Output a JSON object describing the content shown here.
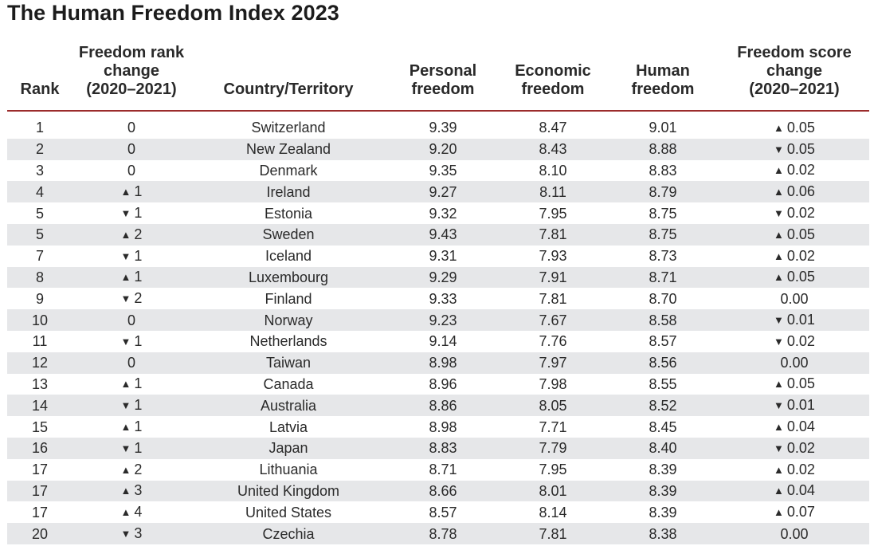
{
  "title": "The Human Freedom Index 2023",
  "header": {
    "rank": "Rank",
    "rank_change_l1": "Freedom rank",
    "rank_change_l2": "change",
    "rank_change_l3": "(2020–2021)",
    "country": "Country/Territory",
    "personal_l1": "Personal",
    "personal_l2": "freedom",
    "economic_l1": "Economic",
    "economic_l2": "freedom",
    "human_l1": "Human",
    "human_l2": "freedom",
    "score_change_l1": "Freedom score",
    "score_change_l2": "change",
    "score_change_l3": "(2020–2021)"
  },
  "arrows": {
    "up": "▲",
    "down": "▼"
  },
  "rows": [
    {
      "rank": "1",
      "rank_change": "0",
      "rank_dir": "",
      "country": "Switzerland",
      "personal": "9.39",
      "economic": "8.47",
      "human": "9.01",
      "score_change": "0.05",
      "score_dir": "up"
    },
    {
      "rank": "2",
      "rank_change": "0",
      "rank_dir": "",
      "country": "New Zealand",
      "personal": "9.20",
      "economic": "8.43",
      "human": "8.88",
      "score_change": "0.05",
      "score_dir": "down"
    },
    {
      "rank": "3",
      "rank_change": "0",
      "rank_dir": "",
      "country": "Denmark",
      "personal": "9.35",
      "economic": "8.10",
      "human": "8.83",
      "score_change": "0.02",
      "score_dir": "up"
    },
    {
      "rank": "4",
      "rank_change": "1",
      "rank_dir": "up",
      "country": "Ireland",
      "personal": "9.27",
      "economic": "8.11",
      "human": "8.79",
      "score_change": "0.06",
      "score_dir": "up"
    },
    {
      "rank": "5",
      "rank_change": "1",
      "rank_dir": "down",
      "country": "Estonia",
      "personal": "9.32",
      "economic": "7.95",
      "human": "8.75",
      "score_change": "0.02",
      "score_dir": "down"
    },
    {
      "rank": "5",
      "rank_change": "2",
      "rank_dir": "up",
      "country": "Sweden",
      "personal": "9.43",
      "economic": "7.81",
      "human": "8.75",
      "score_change": "0.05",
      "score_dir": "up"
    },
    {
      "rank": "7",
      "rank_change": "1",
      "rank_dir": "down",
      "country": "Iceland",
      "personal": "9.31",
      "economic": "7.93",
      "human": "8.73",
      "score_change": "0.02",
      "score_dir": "up"
    },
    {
      "rank": "8",
      "rank_change": "1",
      "rank_dir": "up",
      "country": "Luxembourg",
      "personal": "9.29",
      "economic": "7.91",
      "human": "8.71",
      "score_change": "0.05",
      "score_dir": "up"
    },
    {
      "rank": "9",
      "rank_change": "2",
      "rank_dir": "down",
      "country": "Finland",
      "personal": "9.33",
      "economic": "7.81",
      "human": "8.70",
      "score_change": "0.00",
      "score_dir": ""
    },
    {
      "rank": "10",
      "rank_change": "0",
      "rank_dir": "",
      "country": "Norway",
      "personal": "9.23",
      "economic": "7.67",
      "human": "8.58",
      "score_change": "0.01",
      "score_dir": "down"
    },
    {
      "rank": "11",
      "rank_change": "1",
      "rank_dir": "down",
      "country": "Netherlands",
      "personal": "9.14",
      "economic": "7.76",
      "human": "8.57",
      "score_change": "0.02",
      "score_dir": "down"
    },
    {
      "rank": "12",
      "rank_change": "0",
      "rank_dir": "",
      "country": "Taiwan",
      "personal": "8.98",
      "economic": "7.97",
      "human": "8.56",
      "score_change": "0.00",
      "score_dir": ""
    },
    {
      "rank": "13",
      "rank_change": "1",
      "rank_dir": "up",
      "country": "Canada",
      "personal": "8.96",
      "economic": "7.98",
      "human": "8.55",
      "score_change": "0.05",
      "score_dir": "up"
    },
    {
      "rank": "14",
      "rank_change": "1",
      "rank_dir": "down",
      "country": "Australia",
      "personal": "8.86",
      "economic": "8.05",
      "human": "8.52",
      "score_change": "0.01",
      "score_dir": "down"
    },
    {
      "rank": "15",
      "rank_change": "1",
      "rank_dir": "up",
      "country": "Latvia",
      "personal": "8.98",
      "economic": "7.71",
      "human": "8.45",
      "score_change": "0.04",
      "score_dir": "up"
    },
    {
      "rank": "16",
      "rank_change": "1",
      "rank_dir": "down",
      "country": "Japan",
      "personal": "8.83",
      "economic": "7.79",
      "human": "8.40",
      "score_change": "0.02",
      "score_dir": "down"
    },
    {
      "rank": "17",
      "rank_change": "2",
      "rank_dir": "up",
      "country": "Lithuania",
      "personal": "8.71",
      "economic": "7.95",
      "human": "8.39",
      "score_change": "0.02",
      "score_dir": "up"
    },
    {
      "rank": "17",
      "rank_change": "3",
      "rank_dir": "up",
      "country": "United Kingdom",
      "personal": "8.66",
      "economic": "8.01",
      "human": "8.39",
      "score_change": "0.04",
      "score_dir": "up"
    },
    {
      "rank": "17",
      "rank_change": "4",
      "rank_dir": "up",
      "country": "United States",
      "personal": "8.57",
      "economic": "8.14",
      "human": "8.39",
      "score_change": "0.07",
      "score_dir": "up"
    },
    {
      "rank": "20",
      "rank_change": "3",
      "rank_dir": "down",
      "country": "Czechia",
      "personal": "8.78",
      "economic": "7.81",
      "human": "8.38",
      "score_change": "0.00",
      "score_dir": ""
    }
  ]
}
